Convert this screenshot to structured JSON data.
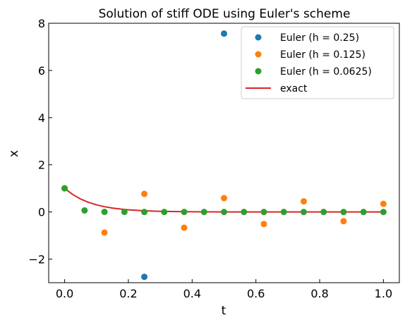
{
  "chart_data": {
    "type": "scatter",
    "title": "Solution of stiff ODE using Euler's scheme",
    "xlabel": "t",
    "ylabel": "x",
    "xlim": [
      -0.05,
      1.05
    ],
    "ylim": [
      -3,
      8
    ],
    "xticks": [
      0.0,
      0.2,
      0.4,
      0.6,
      0.8,
      1.0
    ],
    "xtick_labels": [
      "0.0",
      "0.2",
      "0.4",
      "0.6",
      "0.8",
      "1.0"
    ],
    "yticks": [
      -2,
      0,
      2,
      4,
      6,
      8
    ],
    "ytick_labels": [
      "−2",
      "0",
      "2",
      "4",
      "6",
      "8"
    ],
    "grid": false,
    "legend_position": "upper right",
    "series": [
      {
        "name": "Euler (h = 0.25)",
        "kind": "markers",
        "color": "#1f77b4",
        "x": [
          0.0,
          0.25,
          0.5
        ],
        "y": [
          1.0,
          -2.75,
          7.5625
        ]
      },
      {
        "name": "Euler (h = 0.125)",
        "kind": "markers",
        "color": "#ff7f0e",
        "x": [
          0.0,
          0.125,
          0.25,
          0.375,
          0.5,
          0.625,
          0.75,
          0.875,
          1.0
        ],
        "y": [
          1.0,
          -0.875,
          0.766,
          -0.67,
          0.586,
          -0.513,
          0.449,
          -0.393,
          0.344
        ]
      },
      {
        "name": "Euler (h = 0.0625)",
        "kind": "markers",
        "color": "#2ca02c",
        "x": [
          0.0,
          0.0625,
          0.125,
          0.1875,
          0.25,
          0.3125,
          0.375,
          0.4375,
          0.5,
          0.5625,
          0.625,
          0.6875,
          0.75,
          0.8125,
          0.875,
          0.9375,
          1.0
        ],
        "y": [
          1.0,
          0.0625,
          0.0039,
          0.0002,
          0.0,
          0.0,
          0.0,
          0.0,
          0.0,
          0.0,
          0.0,
          0.0,
          0.0,
          0.0,
          0.0,
          0.0,
          0.0
        ]
      },
      {
        "name": "exact",
        "kind": "line",
        "color": "#d62728",
        "x": [
          0.0,
          0.025,
          0.05,
          0.075,
          0.1,
          0.125,
          0.15,
          0.175,
          0.2,
          0.25,
          0.3,
          0.35,
          0.4,
          0.5,
          0.6,
          0.7,
          0.8,
          0.9,
          1.0
        ],
        "y": [
          1.0,
          0.741,
          0.549,
          0.407,
          0.301,
          0.223,
          0.165,
          0.122,
          0.091,
          0.05,
          0.027,
          0.015,
          0.008,
          0.002,
          0.001,
          0.0,
          0.0,
          0.0,
          0.0
        ]
      }
    ]
  }
}
